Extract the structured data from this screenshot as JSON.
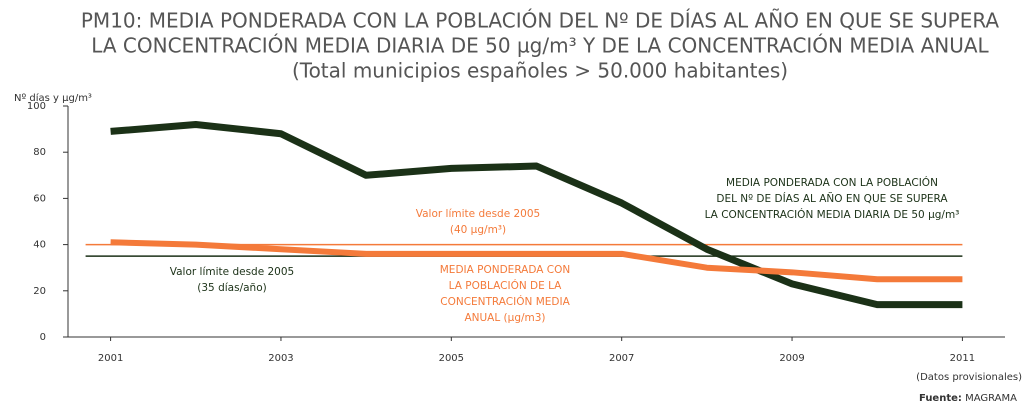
{
  "chart_data": {
    "type": "line",
    "title": [
      "PM10: MEDIA PONDERADA CON LA POBLACIÓN DEL Nº DE DÍAS AL AÑO EN QUE SE SUPERA",
      "LA CONCENTRACIÓN MEDIA DIARIA DE 50 µg/m³  Y DE LA CONCENTRACIÓN MEDIA ANUAL",
      "(Total municipios españoles > 50.000 habitantes)"
    ],
    "y_label": "Nº días y µg/m³",
    "x": [
      2001,
      2002,
      2003,
      2004,
      2005,
      2006,
      2007,
      2008,
      2009,
      2010,
      2011
    ],
    "xlim": [
      2000.5,
      2011.5
    ],
    "xticks": [
      2001,
      2003,
      2005,
      2007,
      2009,
      2011
    ],
    "ylim": [
      0,
      100
    ],
    "yticks": [
      0,
      20,
      40,
      60,
      80,
      100
    ],
    "series": [
      {
        "color": "#1b3117",
        "values": [
          89,
          92,
          88,
          70,
          73,
          74,
          58,
          38,
          23,
          14,
          14
        ]
      },
      {
        "color": "#f47a3a",
        "values": [
          41,
          40,
          38,
          36,
          36,
          36,
          36,
          30,
          28,
          25,
          25
        ]
      }
    ],
    "reference_lines": [
      {
        "value": 40,
        "color": "#f47a3a"
      },
      {
        "value": 35,
        "color": "#1b3117"
      }
    ],
    "annotations": [
      {
        "lines": [
          "MEDIA PONDERADA CON LA POBLACIÓN",
          "DEL Nº DE DÍAS AL AÑO EN QUE SE SUPERA",
          "LA CONCENTRACIÓN MEDIA DIARIA DE 50 µg/m³"
        ],
        "color": "#1b3117"
      },
      {
        "lines": [
          "Valor límite desde 2005",
          "(40 µg/m³)"
        ],
        "color": "#f47a3a"
      },
      {
        "lines": [
          "Valor límite desde 2005",
          "(35 días/año)"
        ],
        "color": "#1b3117"
      },
      {
        "lines": [
          "MEDIA PONDERADA CON",
          "LA POBLACIÓN DE LA",
          "CONCENTRACIÓN MEDIA",
          "ANUAL (µg/m3)"
        ],
        "color": "#f47a3a"
      }
    ],
    "note": "(Datos provisionales)",
    "source_label": "Fuente:",
    "source": "MAGRAMA"
  }
}
